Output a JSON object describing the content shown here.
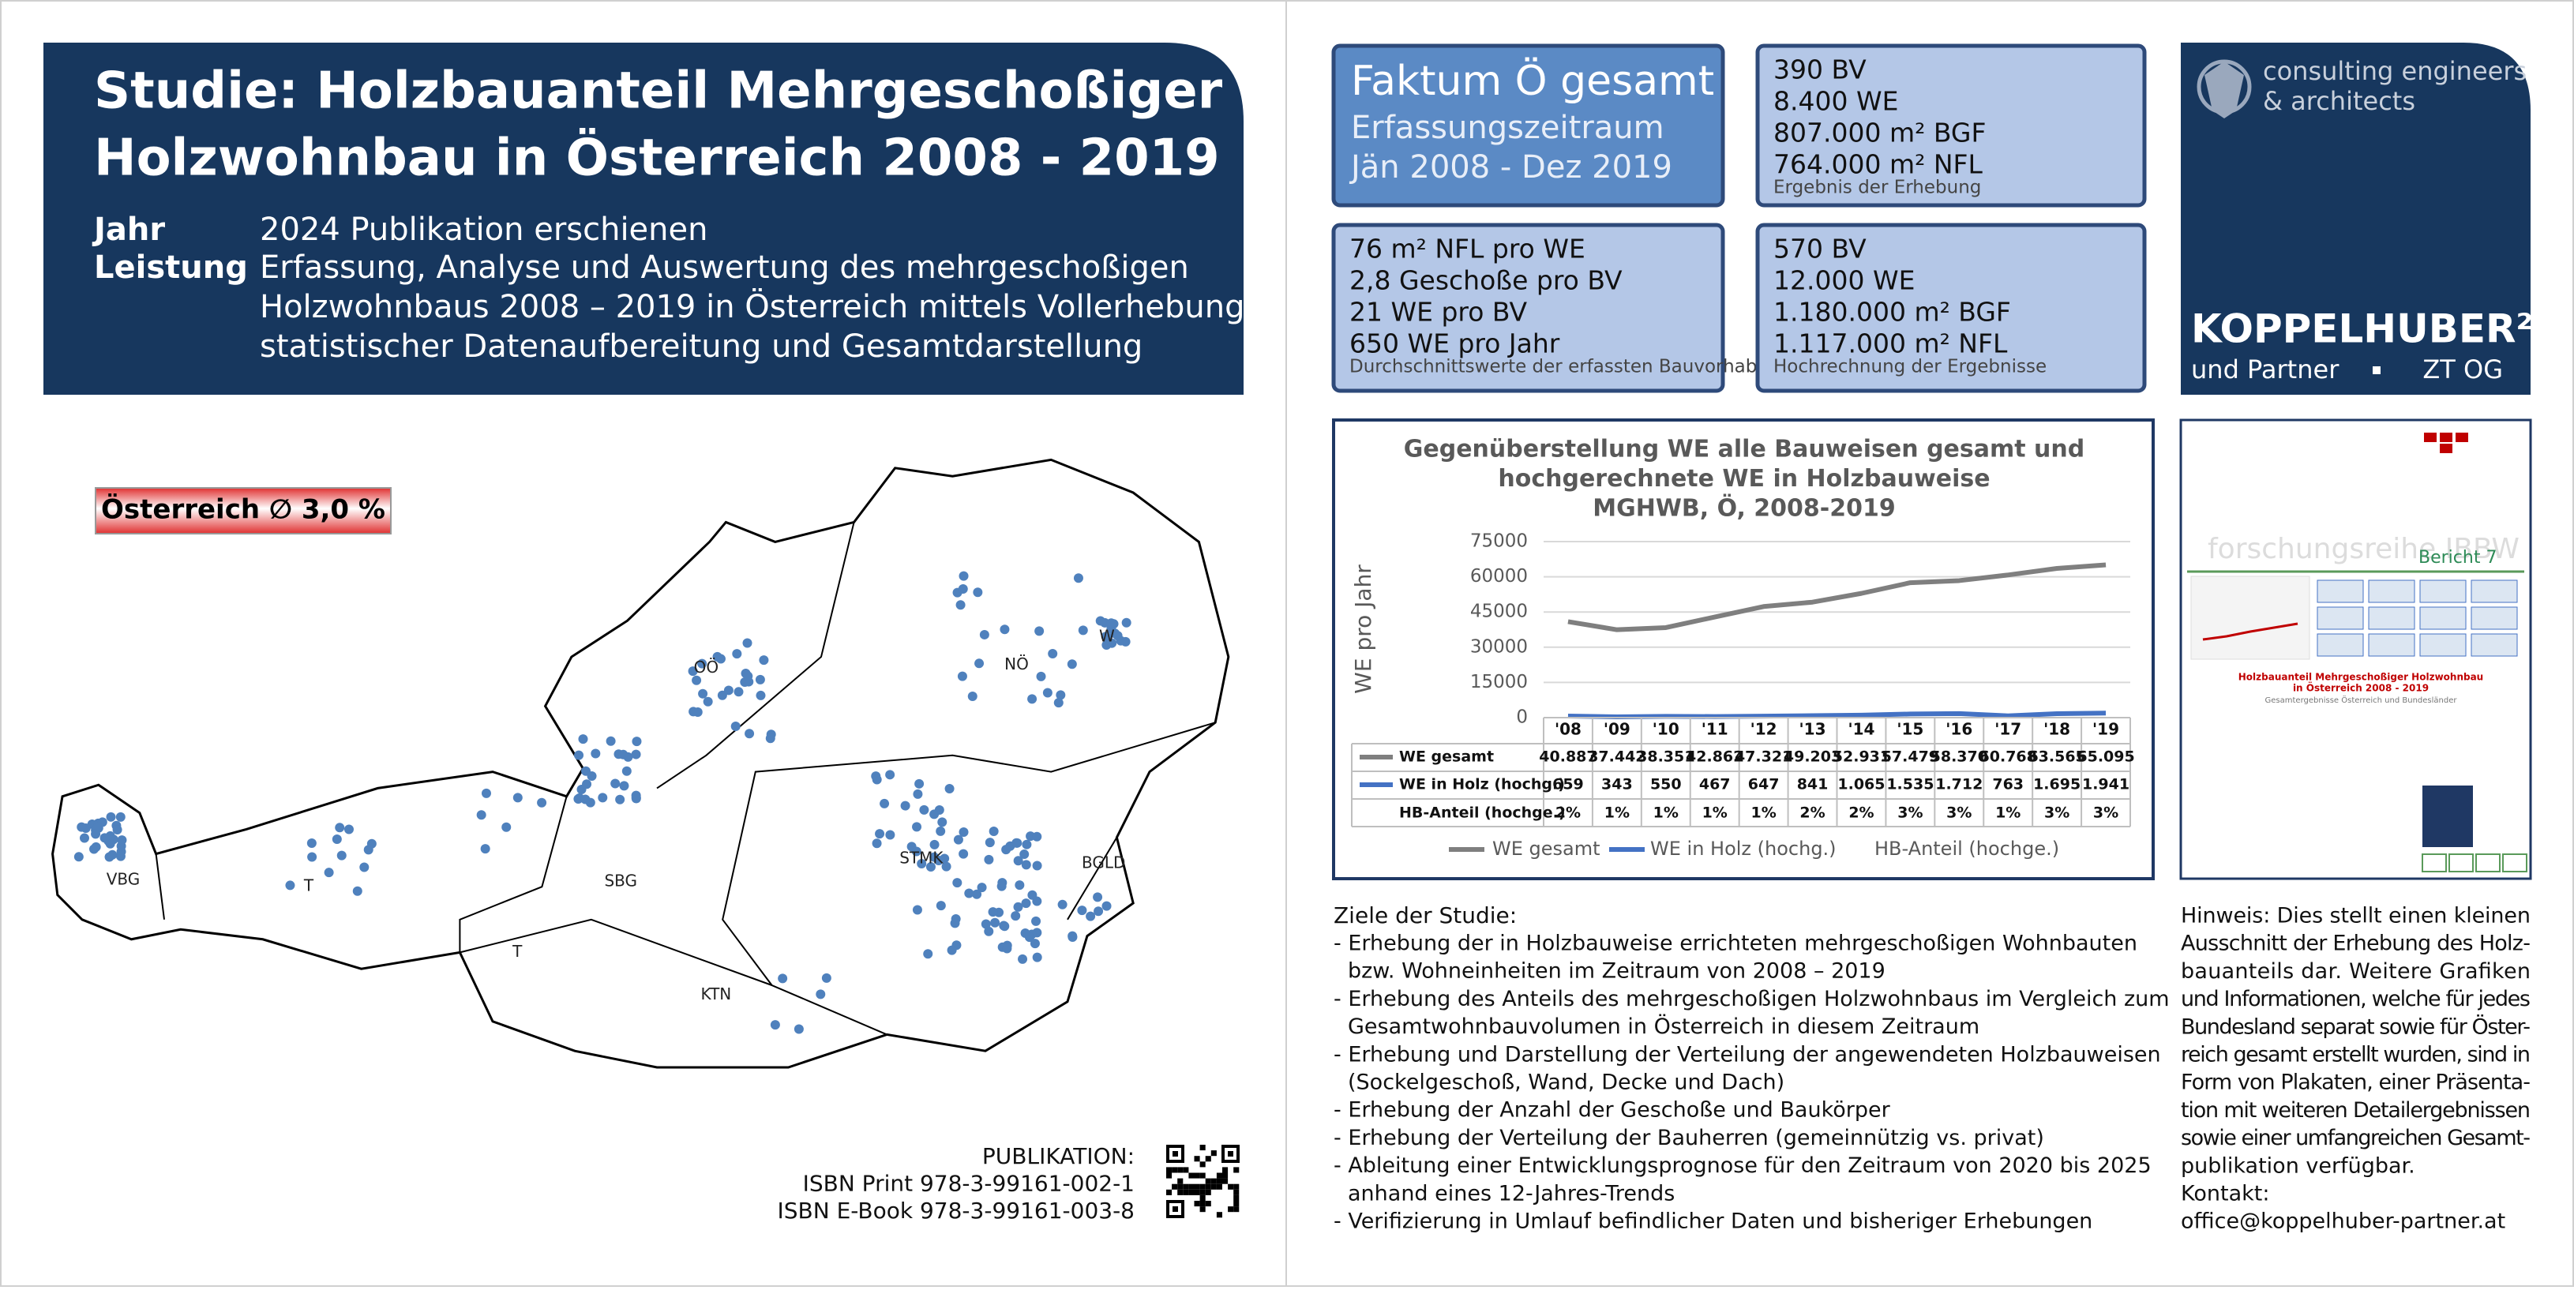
{
  "header": {
    "title": [
      "Studie: Holzbauanteil Mehrgeschoßiger",
      "Holzwohnbau in Österreich 2008 - 2019"
    ],
    "rows": [
      {
        "label": "Jahr",
        "lines": [
          "2024 Publikation erschienen"
        ]
      },
      {
        "label": "Leistung",
        "lines": [
          "Erfassung, Analyse und Auswertung des mehrgeschoßigen",
          "Holzwohnbaus 2008 – 2019 in Österreich mittels Vollerhebung,",
          "statistischer Datenaufbereitung und Gesamtdarstellung"
        ]
      }
    ]
  },
  "facts": [
    {
      "lines": [
        "Faktum Ö gesamt",
        "Erfassungszeitraum",
        "Jän 2008 - Dez 2019"
      ]
    },
    {
      "lines": [
        "390 BV",
        "8.400 WE",
        "807.000 m² BGF",
        "764.000 m² NFL"
      ],
      "note": "Ergebnis der Erhebung"
    },
    {
      "lines": [
        "76 m² NFL pro WE",
        "2,8 Geschoße pro BV",
        "21 WE pro BV",
        "650 WE pro Jahr"
      ],
      "note": "Durchschnittswerte der erfassten Bauvorhaben"
    },
    {
      "lines": [
        "570 BV",
        "12.000 WE",
        "1.180.000 m² BGF",
        "1.117.000 m² NFL"
      ],
      "note": "Hochrechnung der Ergebnisse"
    }
  ],
  "logo": {
    "tagline": [
      "consulting engineers",
      "& architects"
    ],
    "name": "KOPPELHUBER²",
    "suffix": [
      "und Partner",
      "ZT OG"
    ]
  },
  "chart": {
    "type": "line",
    "title": [
      "Gegenüberstellung WE alle Bauweisen gesamt und",
      "hochgerechnete WE in Holzbauweise",
      "MGHWB, Ö, 2008-2019"
    ],
    "y_label": "WE pro Jahr",
    "categories": [
      "'08",
      "'09",
      "'10",
      "'11",
      "'12",
      "'13",
      "'14",
      "'15",
      "'16",
      "'17",
      "'18",
      "'19"
    ],
    "series": [
      {
        "name": "WE gesamt",
        "color": "#7f7f7f",
        "values": [
          40887,
          37442,
          38351,
          42862,
          47321,
          49203,
          52931,
          57479,
          58370,
          60768,
          63565,
          65095
        ],
        "value_labels": [
          "40.887",
          "37.442",
          "38.351",
          "42.862",
          "47.321",
          "49.203",
          "52.931",
          "57.479",
          "58.370",
          "60.768",
          "63.565",
          "65.095"
        ]
      },
      {
        "name": "WE in Holz (hochg.)",
        "color": "#4472c4",
        "values": [
          659,
          343,
          550,
          467,
          647,
          841,
          1065,
          1535,
          1712,
          763,
          1695,
          1941
        ],
        "value_labels": [
          "659",
          "343",
          "550",
          "467",
          "647",
          "841",
          "1.065",
          "1.535",
          "1.712",
          "763",
          "1.695",
          "1.941"
        ]
      },
      {
        "name": "HB-Anteil (hochge.)",
        "values": [
          2,
          1,
          1,
          1,
          1,
          2,
          2,
          3,
          3,
          1,
          3,
          3
        ],
        "value_labels": [
          "2%",
          "1%",
          "1%",
          "1%",
          "1%",
          "2%",
          "2%",
          "3%",
          "3%",
          "1%",
          "3%",
          "3%"
        ]
      }
    ],
    "ylim": [
      0,
      75000
    ],
    "yticks": [
      0,
      15000,
      30000,
      45000,
      60000,
      75000
    ],
    "grid": true
  },
  "cover": {
    "series": "forschungsreihe IBBW",
    "report": "Bericht 7",
    "title": [
      "Holzbauanteil Mehrgeschoßiger Holzwohnbau",
      "in Österreich 2008 - 2019"
    ],
    "subtitle": "Gesamtergebnisse Österreich und Bundesländer"
  },
  "map": {
    "badge": "Österreich ∅ 3,0 %",
    "regions": [
      "VBG",
      "T",
      "SBG",
      "OÖ",
      "NÖ",
      "W",
      "STMK",
      "BGLD",
      "KTN",
      "T"
    ]
  },
  "publication": {
    "lines": [
      "PUBLIKATION:",
      "ISBN Print 978-3-99161-002-1",
      "ISBN E-Book 978-3-99161-003-8"
    ]
  },
  "goals": {
    "heading": "Ziele der Studie:",
    "items": [
      [
        "- Erhebung der in Holzbauweise errichteten mehrgeschoßigen Wohnbauten",
        "bzw. Wohneinheiten im Zeitraum von 2008 – 2019"
      ],
      [
        "- Erhebung des Anteils des mehrgeschoßigen Holzwohnbaus im Vergleich zum",
        "Gesamtwohnbauvolumen in Österreich in diesem Zeitraum"
      ],
      [
        "- Erhebung und Darstellung der Verteilung der angewendeten Holzbauweisen",
        "(Sockelgeschoß, Wand, Decke und Dach)"
      ],
      [
        "- Erhebung der Anzahl der Geschoße und Baukörper"
      ],
      [
        "- Erhebung der Verteilung der Bauherren (gemeinnützig vs. privat)"
      ],
      [
        "- Ableitung einer Entwicklungsprognose für den Zeitraum von 2020 bis 2025",
        "anhand eines 12-Jahres-Trends"
      ],
      [
        "- Verifizierung in Umlauf befindlicher Daten und bisheriger Erhebungen"
      ]
    ]
  },
  "note": {
    "lines": [
      "Hinweis: Dies stellt einen kleinen",
      "Ausschnitt der Erhebung des Holz-",
      "bauanteils dar. Weitere Grafiken",
      "und Informationen, welche für jedes",
      "Bundesland separat sowie für Öster-",
      "reich gesamt erstellt wurden, sind in",
      "Form von Plakaten, einer Präsenta-",
      "tion mit weiteren Detailergebnissen",
      "sowie einer umfangreichen Gesamt-",
      "publikation verfügbar.",
      "Kontakt:",
      "office@koppelhuber-partner.at"
    ]
  }
}
